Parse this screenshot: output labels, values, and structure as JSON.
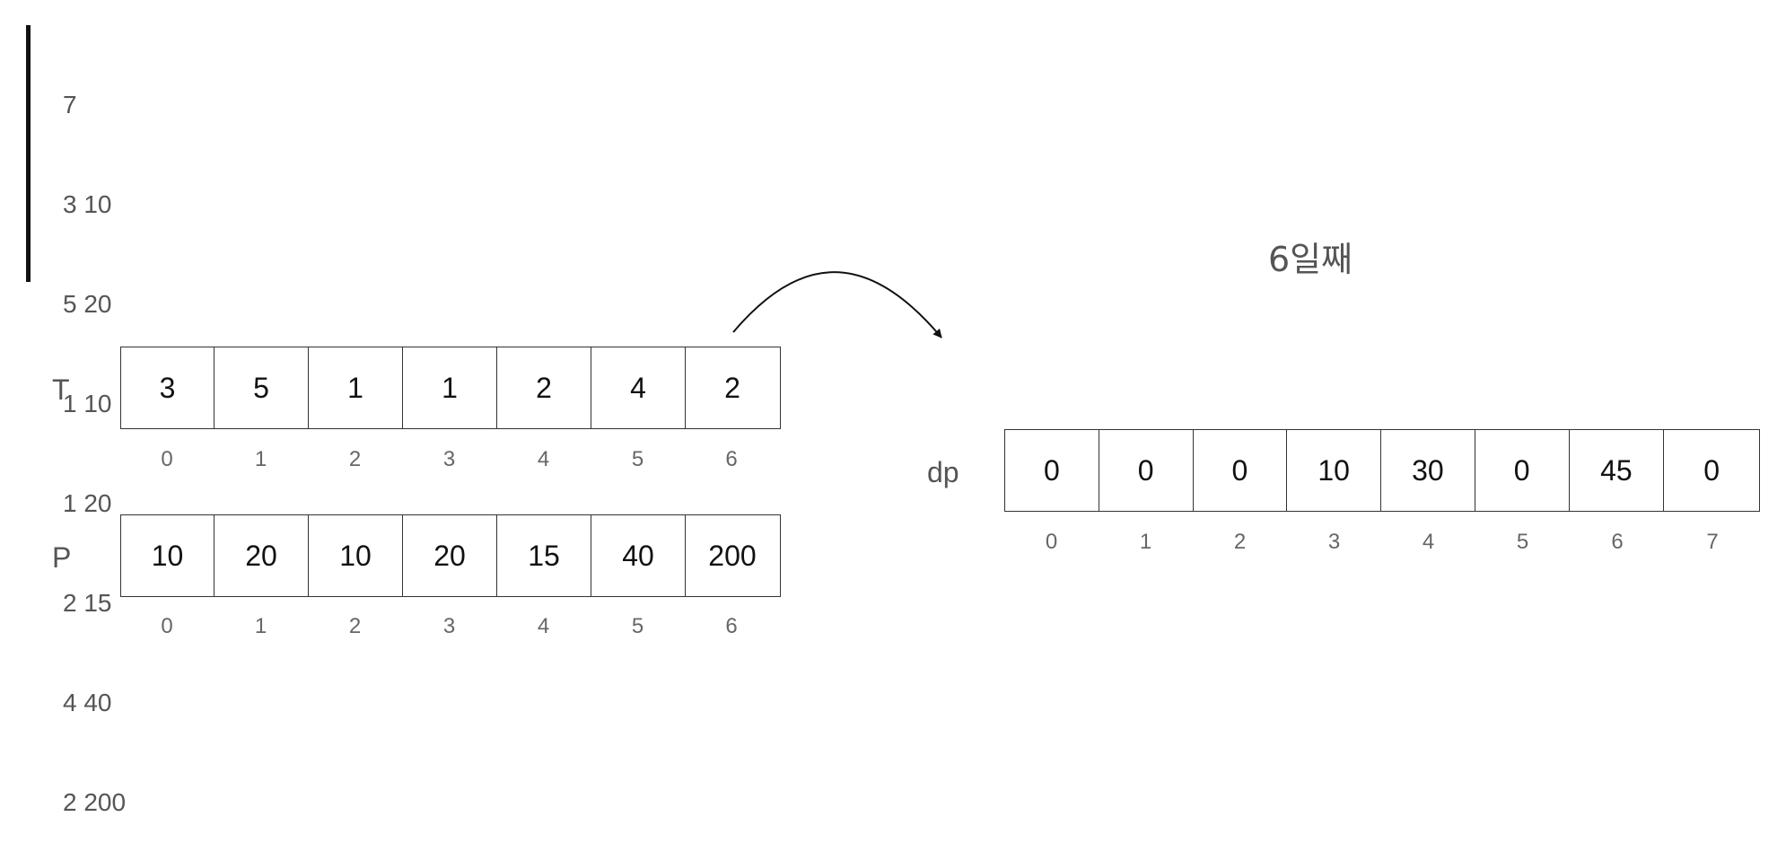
{
  "input_lines": [
    "7",
    "3 10",
    "5 20",
    "1 10",
    "1 20",
    "2 15",
    "4 40",
    "2 200"
  ],
  "day_title": "6일째",
  "T": {
    "label": "T",
    "values": [
      "3",
      "5",
      "1",
      "1",
      "2",
      "4",
      "2"
    ],
    "indices": [
      "0",
      "1",
      "2",
      "3",
      "4",
      "5",
      "6"
    ]
  },
  "P": {
    "label": "P",
    "values": [
      "10",
      "20",
      "10",
      "20",
      "15",
      "40",
      "200"
    ],
    "indices": [
      "0",
      "1",
      "2",
      "3",
      "4",
      "5",
      "6"
    ]
  },
  "dp": {
    "label": "dp",
    "values": [
      "0",
      "0",
      "0",
      "10",
      "30",
      "0",
      "45",
      "0"
    ],
    "indices": [
      "0",
      "1",
      "2",
      "3",
      "4",
      "5",
      "6",
      "7"
    ]
  }
}
